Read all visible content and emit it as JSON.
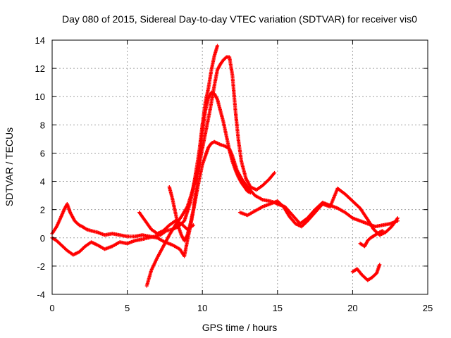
{
  "chart_data": {
    "type": "scatter",
    "title": "Day 080 of 2015, Sidereal Day-to-day VTEC variation (SDTVAR) for receiver vis0",
    "xlabel": "GPS time / hours",
    "ylabel": "SDTVAR / TECUs",
    "xlim": [
      0,
      25
    ],
    "ylim": [
      -4,
      14
    ],
    "xticks": [
      "0",
      "5",
      "10",
      "15",
      "20",
      "25"
    ],
    "yticks": [
      "-4",
      "-2",
      "0",
      "2",
      "4",
      "6",
      "8",
      "10",
      "12",
      "14"
    ],
    "grid": true,
    "marker": "+",
    "color": "#ff0000",
    "series": [
      {
        "x": [
          0.0,
          0.3,
          0.6,
          0.8,
          1.0,
          1.2,
          1.5,
          1.8,
          2.0,
          2.3,
          2.6,
          3.0,
          3.5,
          4.0,
          4.5,
          5.0,
          5.5,
          6.0,
          6.5,
          7.0,
          7.5,
          8.0,
          8.5,
          8.8,
          9.0,
          9.2,
          9.5,
          9.8,
          10.0,
          10.2,
          10.4,
          10.6,
          10.8,
          11.0,
          11.2,
          11.5,
          11.8,
          12.0,
          12.3,
          12.6,
          13.0,
          13.5,
          14.0,
          14.5,
          14.8,
          15.0,
          15.5,
          16.0,
          16.5,
          17.0,
          17.5,
          18.0,
          18.5,
          19.0,
          19.5,
          20.0,
          20.5,
          21.0,
          21.5,
          22.0,
          22.5,
          23.0
        ],
        "y": [
          0.3,
          0.8,
          1.5,
          2.0,
          2.4,
          1.8,
          1.2,
          0.9,
          0.8,
          0.6,
          0.5,
          0.4,
          0.2,
          0.3,
          0.2,
          0.1,
          0.1,
          0.2,
          0.1,
          0.0,
          -0.3,
          -0.5,
          -0.8,
          -1.3,
          -0.2,
          0.8,
          2.5,
          4.2,
          5.2,
          5.8,
          6.4,
          6.7,
          6.8,
          6.7,
          6.6,
          6.5,
          6.3,
          5.8,
          4.8,
          4.2,
          3.6,
          3.0,
          2.7,
          2.6,
          2.5,
          2.4,
          2.2,
          1.6,
          1.0,
          1.4,
          2.0,
          2.5,
          2.3,
          2.1,
          1.8,
          1.4,
          1.2,
          1.0,
          0.8,
          0.9,
          1.0,
          1.2
        ]
      },
      {
        "x": [
          0.0,
          0.3,
          0.6,
          1.0,
          1.4,
          1.8,
          2.2,
          2.6,
          3.0,
          3.5,
          4.0,
          4.5,
          5.0,
          5.5,
          6.0,
          6.4,
          6.8,
          7.2,
          7.6,
          8.0,
          8.4,
          8.8,
          9.2,
          9.5,
          9.8,
          10.0,
          10.2,
          10.4,
          10.6,
          10.8,
          11.0
        ],
        "y": [
          0.0,
          -0.2,
          -0.5,
          -0.9,
          -1.2,
          -1.0,
          -0.6,
          -0.3,
          -0.5,
          -0.8,
          -0.6,
          -0.3,
          -0.4,
          -0.2,
          -0.1,
          0.0,
          0.1,
          0.2,
          0.5,
          0.6,
          0.8,
          1.2,
          2.5,
          4.2,
          6.2,
          8.0,
          9.6,
          10.6,
          11.9,
          12.9,
          13.6
        ]
      },
      {
        "x": [
          6.3,
          6.6,
          7.0,
          7.4,
          7.8,
          8.2,
          8.6,
          9.0,
          9.3,
          9.6,
          9.9,
          10.2,
          10.5,
          10.8,
          11.0,
          11.2,
          11.4,
          11.6,
          11.8,
          12.0,
          12.2,
          12.4,
          12.6,
          12.9,
          13.2,
          13.6,
          14.0,
          14.4,
          14.8
        ],
        "y": [
          -3.4,
          -2.3,
          -1.4,
          -0.6,
          0.2,
          0.9,
          1.5,
          2.2,
          3.2,
          4.4,
          5.8,
          7.4,
          9.0,
          10.8,
          11.9,
          12.3,
          12.6,
          12.8,
          12.8,
          11.5,
          9.0,
          6.9,
          5.4,
          4.2,
          3.6,
          3.4,
          3.7,
          4.1,
          4.6
        ]
      },
      {
        "x": [
          7.8,
          8.0,
          8.2,
          8.4,
          8.6,
          8.8,
          9.0,
          9.2,
          9.4,
          9.6,
          9.8,
          10.0,
          10.2,
          10.4,
          10.6,
          10.8,
          11.0,
          11.2,
          11.4,
          11.6,
          11.8,
          12.0,
          12.2,
          12.4,
          12.6,
          12.8,
          13.0,
          13.2
        ],
        "y": [
          3.6,
          2.8,
          1.8,
          0.8,
          0.2,
          -0.2,
          0.2,
          1.0,
          2.0,
          3.5,
          5.5,
          7.5,
          9.0,
          9.9,
          10.3,
          10.2,
          9.8,
          9.0,
          8.2,
          7.2,
          6.2,
          5.4,
          4.8,
          4.3,
          3.9,
          3.6,
          3.3,
          3.2
        ]
      },
      {
        "x": [
          5.8,
          6.2,
          6.6,
          7.0,
          7.4,
          7.8,
          8.2,
          8.6,
          9.0,
          9.4
        ],
        "y": [
          1.8,
          1.2,
          0.6,
          0.3,
          0.5,
          0.9,
          1.2,
          1.0,
          0.6,
          0.9
        ]
      },
      {
        "x": [
          12.5,
          13.0,
          13.5,
          14.0,
          14.5,
          15.0,
          15.4,
          15.8,
          16.2,
          16.6,
          17.0,
          17.5,
          18.0,
          18.5,
          19.0
        ],
        "y": [
          1.8,
          1.6,
          1.9,
          2.2,
          2.4,
          2.6,
          2.2,
          1.5,
          1.0,
          0.8,
          1.2,
          1.8,
          2.4,
          2.2,
          3.5
        ]
      },
      {
        "x": [
          19.0,
          19.5,
          20.0,
          20.5,
          21.0,
          21.4,
          21.8,
          22.2,
          22.6,
          23.0
        ],
        "y": [
          3.5,
          3.1,
          2.6,
          2.1,
          1.3,
          0.6,
          0.2,
          0.4,
          0.8,
          1.4
        ]
      },
      {
        "x": [
          20.5,
          20.8,
          21.0,
          21.2,
          21.5,
          21.8,
          22.0
        ],
        "y": [
          -0.4,
          -0.6,
          -0.2,
          0.0,
          0.2,
          0.4,
          0.5
        ]
      },
      {
        "x": [
          20.0,
          20.3,
          20.6,
          21.0,
          21.3,
          21.6,
          21.8
        ],
        "y": [
          -2.4,
          -2.2,
          -2.6,
          -3.0,
          -2.8,
          -2.5,
          -1.9
        ]
      }
    ]
  }
}
